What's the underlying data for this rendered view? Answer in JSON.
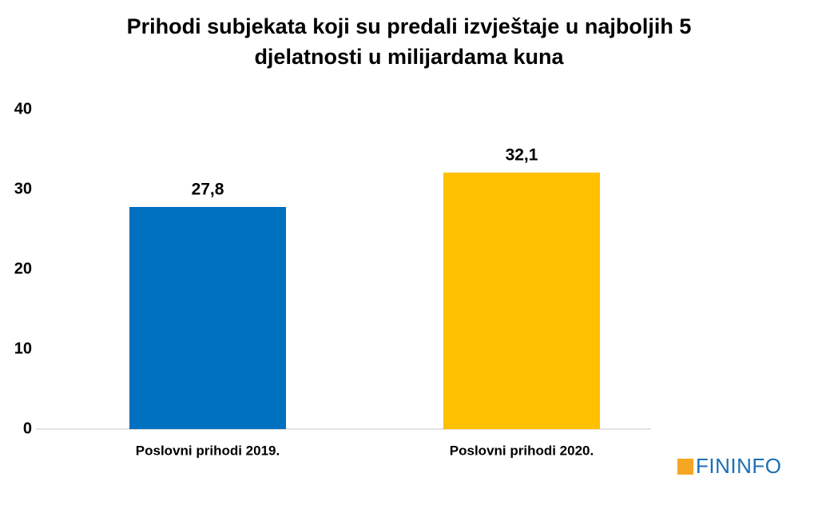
{
  "chart_data": {
    "type": "bar",
    "title": "Prihodi subjekata koji su predali izvještaje u najboljih 5 djelatnosti u milijardama kuna",
    "categories": [
      "Poslovni prihodi 2019.",
      "Poslovni prihodi 2020."
    ],
    "values": [
      27.8,
      32.1
    ],
    "value_labels": [
      "27,8",
      "32,1"
    ],
    "colors": [
      "#0070c0",
      "#ffc000"
    ],
    "ylim": [
      0,
      40
    ],
    "yticks": [
      0,
      10,
      20,
      30,
      40
    ],
    "grid": false
  },
  "logo": "FININFO"
}
